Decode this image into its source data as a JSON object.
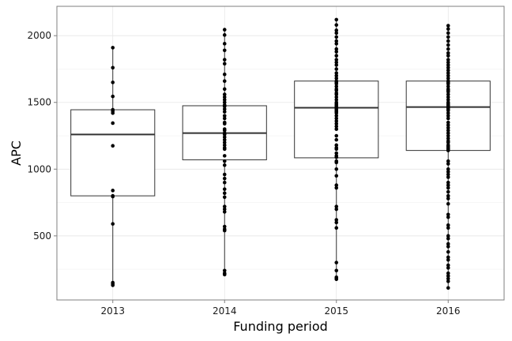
{
  "chart_data": {
    "type": "box",
    "title": "",
    "xlabel": "Funding period",
    "ylabel": "APC",
    "categories": [
      "2013",
      "2014",
      "2015",
      "2016"
    ],
    "ylim": [
      20,
      2220
    ],
    "yticks": [
      500,
      1000,
      1500,
      2000
    ],
    "grid": true,
    "legend": "none",
    "boxes": [
      {
        "category": "2013",
        "min": 130,
        "q1": 800,
        "median": 1260,
        "q3": 1445,
        "max": 1910
      },
      {
        "category": "2014",
        "min": 210,
        "q1": 1070,
        "median": 1270,
        "q3": 1475,
        "max": 2045
      },
      {
        "category": "2015",
        "min": 175,
        "q1": 1085,
        "median": 1460,
        "q3": 1660,
        "max": 2120
      },
      {
        "category": "2016",
        "min": 110,
        "q1": 1140,
        "median": 1465,
        "q3": 1660,
        "max": 2075
      }
    ],
    "points": [
      {
        "category": "2013",
        "values": [
          1910,
          1760,
          1650,
          1545,
          1445,
          1435,
          1420,
          1345,
          1175,
          840,
          800,
          795,
          590,
          150,
          140,
          130
        ]
      },
      {
        "category": "2014",
        "values": [
          2045,
          2005,
          1940,
          1890,
          1820,
          1790,
          1710,
          1660,
          1600,
          1560,
          1540,
          1520,
          1500,
          1480,
          1470,
          1450,
          1430,
          1400,
          1380,
          1350,
          1340,
          1300,
          1290,
          1270,
          1260,
          1240,
          1220,
          1200,
          1180,
          1160,
          1150,
          1100,
          1060,
          1030,
          960,
          930,
          900,
          850,
          820,
          790,
          720,
          700,
          680,
          570,
          550,
          540,
          240,
          220,
          210
        ]
      },
      {
        "category": "2015",
        "values": [
          2120,
          2080,
          2040,
          2020,
          1990,
          1960,
          1940,
          1900,
          1880,
          1850,
          1820,
          1800,
          1780,
          1750,
          1720,
          1700,
          1680,
          1660,
          1650,
          1640,
          1620,
          1600,
          1590,
          1570,
          1560,
          1540,
          1520,
          1500,
          1490,
          1480,
          1470,
          1460,
          1450,
          1440,
          1430,
          1420,
          1400,
          1380,
          1360,
          1340,
          1320,
          1300,
          1250,
          1220,
          1180,
          1160,
          1150,
          1120,
          1100,
          1090,
          1060,
          1050,
          1000,
          950,
          880,
          860,
          720,
          700,
          620,
          600,
          560,
          300,
          240,
          190,
          180,
          175
        ]
      },
      {
        "category": "2016",
        "values": [
          2075,
          2050,
          2020,
          1990,
          1960,
          1930,
          1900,
          1870,
          1850,
          1820,
          1800,
          1780,
          1760,
          1740,
          1720,
          1700,
          1680,
          1660,
          1650,
          1640,
          1620,
          1600,
          1590,
          1580,
          1560,
          1540,
          1520,
          1500,
          1490,
          1480,
          1470,
          1460,
          1450,
          1440,
          1420,
          1400,
          1380,
          1350,
          1330,
          1310,
          1290,
          1270,
          1250,
          1230,
          1210,
          1200,
          1180,
          1170,
          1160,
          1150,
          1140,
          1060,
          1040,
          1000,
          980,
          960,
          940,
          900,
          880,
          860,
          830,
          800,
          780,
          740,
          660,
          640,
          580,
          560,
          500,
          480,
          440,
          420,
          380,
          340,
          320,
          280,
          260,
          220,
          200,
          180,
          160,
          110
        ]
      }
    ]
  }
}
